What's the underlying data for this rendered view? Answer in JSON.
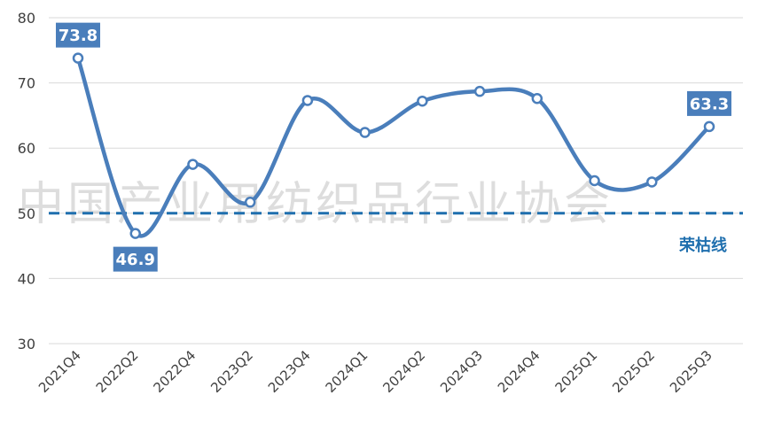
{
  "watermark": "中国产业用纺织品行业协会",
  "chart_data": {
    "type": "line",
    "title": "",
    "xlabel": "",
    "ylabel": "",
    "categories": [
      "2021Q4",
      "2022Q2",
      "2022Q4",
      "2023Q2",
      "2023Q4",
      "2024Q1",
      "2024Q2",
      "2024Q3",
      "2024Q4",
      "2025Q1",
      "2025Q2",
      "2025Q3"
    ],
    "series": [
      {
        "values": [
          73.8,
          46.9,
          57.5,
          51.7,
          67.3,
          62.4,
          67.2,
          68.7,
          67.6,
          55.0,
          54.8,
          63.3
        ]
      }
    ],
    "ylim": [
      30,
      80
    ],
    "yticks": [
      30,
      40,
      50,
      60,
      70,
      80
    ],
    "grid": true,
    "line_color": "#4a7ebb",
    "reference_line": {
      "value": 50,
      "label": "荣枯线",
      "color": "#1f6fae"
    },
    "callouts": [
      {
        "index": 0,
        "text": "73.8",
        "position": "above"
      },
      {
        "index": 1,
        "text": "46.9",
        "position": "below"
      },
      {
        "index": 11,
        "text": "63.3",
        "position": "above"
      }
    ],
    "callout_color": "#4a7ebb"
  }
}
